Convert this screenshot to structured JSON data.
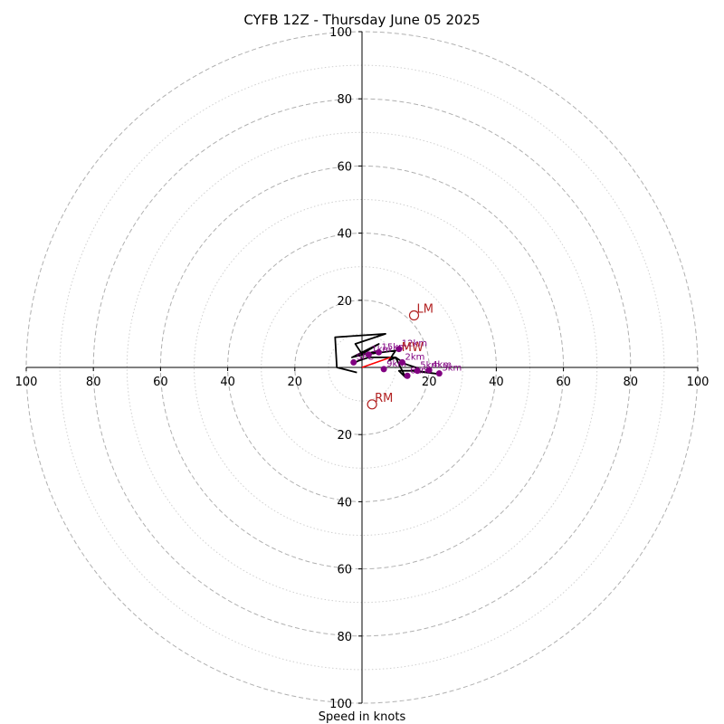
{
  "chart_data": {
    "type": "hodograph",
    "title": "CYFB 12Z - Thursday June 05 2025",
    "xlabel": "Speed in knots",
    "range": 100,
    "major_rings": [
      20,
      40,
      60,
      80,
      100
    ],
    "minor_rings": [
      10,
      30,
      50,
      70,
      90
    ],
    "tick_labels": {
      "top": [
        "20",
        "40",
        "60",
        "80",
        "100"
      ],
      "bottom": [
        "20",
        "40",
        "60",
        "80",
        "100"
      ],
      "left": [
        "20",
        "40",
        "60",
        "80",
        "100"
      ],
      "right": [
        "20",
        "40",
        "60",
        "80",
        "100"
      ]
    },
    "trace": [
      [
        -1.5,
        -1.5
      ],
      [
        -7.5,
        0
      ],
      [
        -8,
        9
      ],
      [
        7,
        10
      ],
      [
        -2,
        7
      ],
      [
        0,
        4
      ],
      [
        5,
        7
      ],
      [
        -3,
        3
      ],
      [
        5,
        5
      ],
      [
        2,
        4
      ],
      [
        10,
        5
      ],
      [
        8,
        2
      ],
      [
        10,
        3
      ],
      [
        13,
        -3
      ],
      [
        11,
        -1
      ],
      [
        15,
        -1
      ],
      [
        23,
        -2
      ],
      [
        16,
        -1
      ],
      [
        16,
        0
      ],
      [
        13,
        1
      ],
      [
        10,
        3
      ],
      [
        8,
        3
      ],
      [
        5,
        3
      ],
      [
        2,
        3
      ],
      [
        -1,
        2
      ],
      [
        -3,
        1
      ]
    ],
    "height_points": [
      {
        "label": "SFC",
        "u": -2.5,
        "v": 1.5
      },
      {
        "label": "1km",
        "u": 2,
        "v": 3.8
      },
      {
        "label": "2km",
        "u": 12,
        "v": 1.5
      },
      {
        "label": "3km",
        "u": 23,
        "v": -1.8
      },
      {
        "label": "4km",
        "u": 20,
        "v": -0.8
      },
      {
        "label": "5km",
        "u": 16.5,
        "v": -1
      },
      {
        "label": "6km",
        "u": 13.5,
        "v": -2.5
      },
      {
        "label": "9km",
        "u": 6.5,
        "v": -0.5
      },
      {
        "label": "12km",
        "u": 11,
        "v": 5.5
      },
      {
        "label": "15km",
        "u": 5,
        "v": 4.5
      }
    ],
    "motions": [
      {
        "label": "LM",
        "u": 15.5,
        "v": 15.5
      },
      {
        "label": "RM",
        "u": 3,
        "v": -11
      },
      {
        "label": "MW",
        "u": 11,
        "v": 4
      }
    ],
    "shear_vector": {
      "from": [
        0,
        0
      ],
      "to": [
        8.5,
        3
      ]
    },
    "colors": {
      "trace": "#000000",
      "heights": "#800080",
      "motions": "#b22222",
      "shear": "#ff0000",
      "grid": "#b0b0b0"
    }
  }
}
